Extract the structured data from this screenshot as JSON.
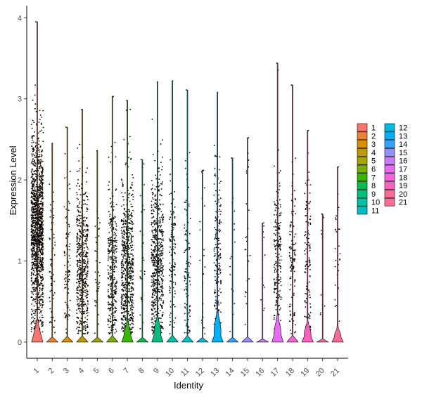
{
  "chart_data": {
    "type": "violin",
    "xlabel": "Identity",
    "ylabel": "Expression Level",
    "ylim": [
      -0.2,
      4.15
    ],
    "yticks": [
      0,
      1,
      2,
      3,
      4
    ],
    "categories": [
      "1",
      "2",
      "3",
      "4",
      "5",
      "6",
      "7",
      "8",
      "9",
      "10",
      "11",
      "12",
      "13",
      "14",
      "15",
      "16",
      "17",
      "18",
      "19",
      "20",
      "21"
    ],
    "colors": [
      "#F8766D",
      "#EA8331",
      "#D89000",
      "#C09B00",
      "#A3A500",
      "#7CAE00",
      "#39B600",
      "#00BB4E",
      "#00BF7D",
      "#00C1A3",
      "#00BFC4",
      "#00BAE0",
      "#00B0F6",
      "#35A2FF",
      "#9590FF",
      "#C77CFF",
      "#E76BF3",
      "#FA62DB",
      "#FF62BC",
      "#FF6A98",
      "#FF6C91"
    ],
    "max_values": [
      3.95,
      2.45,
      2.65,
      2.87,
      2.36,
      3.03,
      2.98,
      2.25,
      3.21,
      3.22,
      3.11,
      2.12,
      3.08,
      2.27,
      2.52,
      1.47,
      3.44,
      3.17,
      2.61,
      1.58,
      2.16
    ],
    "violin_height": [
      0.25,
      0.02,
      0.02,
      0.02,
      0.02,
      0.02,
      0.25,
      0.02,
      0.32,
      0.02,
      0.02,
      0.02,
      0.38,
      0.02,
      0.02,
      0.02,
      0.32,
      0.02,
      0.25,
      0.02,
      0.18
    ],
    "violin_width": [
      0.8,
      0.8,
      0.8,
      0.8,
      0.8,
      0.8,
      0.8,
      0.8,
      0.8,
      0.8,
      0.8,
      0.8,
      0.8,
      0.8,
      0.8,
      0.8,
      0.8,
      0.8,
      0.8,
      0.8,
      0.8
    ],
    "expressing_cells": [
      1400,
      60,
      90,
      550,
      35,
      350,
      650,
      25,
      600,
      120,
      110,
      20,
      180,
      15,
      25,
      12,
      200,
      120,
      120,
      8,
      30
    ],
    "expr_center": [
      1.4,
      1.0,
      1.0,
      0.9,
      1.0,
      0.9,
      0.9,
      1.0,
      1.0,
      1.0,
      1.0,
      1.0,
      1.0,
      1.0,
      1.0,
      1.0,
      1.0,
      1.0,
      1.0,
      1.0,
      1.0
    ],
    "legend": {
      "position": "right",
      "columns": [
        [
          "1",
          "2",
          "3",
          "4",
          "5",
          "6",
          "7",
          "8",
          "9",
          "10",
          "11"
        ],
        [
          "12",
          "13",
          "14",
          "15",
          "16",
          "17",
          "18",
          "19",
          "20",
          "21"
        ]
      ]
    }
  }
}
